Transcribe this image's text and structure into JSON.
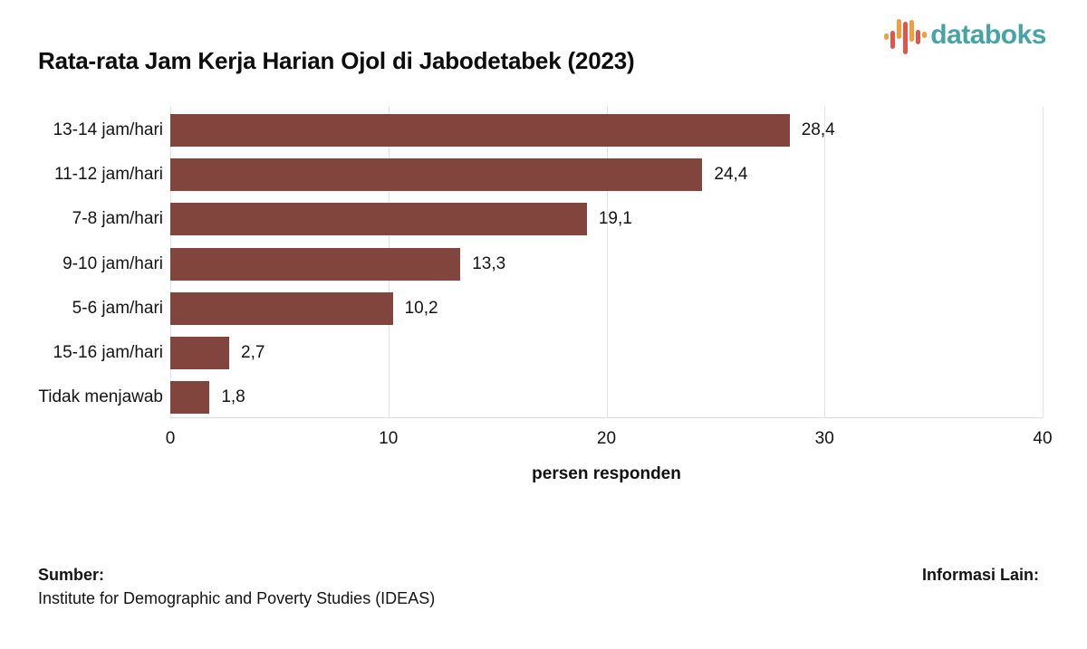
{
  "header": {
    "logo_text": "databoks",
    "logo_colors": {
      "text": "#46A5A2",
      "orange": "#EF9F3E",
      "red": "#E0564A"
    }
  },
  "chart_data": {
    "type": "bar",
    "orientation": "horizontal",
    "title": "Rata-rata Jam Kerja Harian Ojol di Jabodetabek (2023)",
    "categories": [
      "13-14 jam/hari",
      "11-12 jam/hari",
      "7-8 jam/hari",
      "9-10 jam/hari",
      "5-6 jam/hari",
      "15-16 jam/hari",
      "Tidak menjawab"
    ],
    "values": [
      28.4,
      24.4,
      19.1,
      13.3,
      10.2,
      2.7,
      1.8
    ],
    "value_labels": [
      "28,4",
      "24,4",
      "19,1",
      "13,3",
      "10,2",
      "2,7",
      "1,8"
    ],
    "xlabel": "persen responden",
    "xlim": [
      0,
      40
    ],
    "xticks": [
      0,
      10,
      20,
      30,
      40
    ],
    "bar_color": "#81453D",
    "gridline_color": "#E3E3E3",
    "grid": true,
    "legend": false
  },
  "footer": {
    "source_label": "Sumber:",
    "source_value": "Institute for Demographic and Poverty Studies (IDEAS)",
    "info_label": "Informasi Lain:"
  }
}
